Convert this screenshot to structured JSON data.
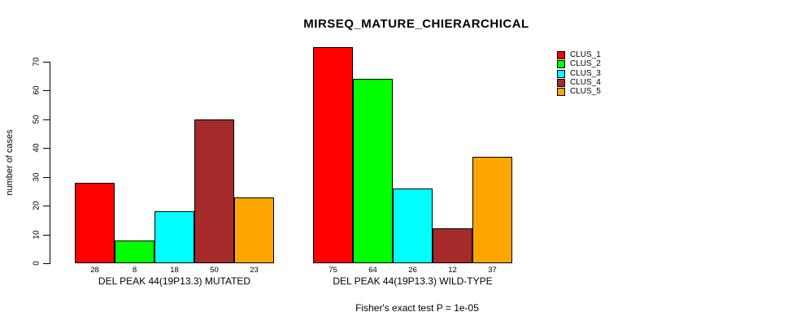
{
  "chart_data": {
    "type": "bar",
    "title": "MIRSEQ_MATURE_CHIERARCHICAL",
    "ylabel": "number of cases",
    "xlabel": "",
    "ylim": [
      0,
      70
    ],
    "yticks": [
      0,
      10,
      20,
      30,
      40,
      50,
      60,
      70
    ],
    "grid": false,
    "legend_position": "top-right",
    "categories": [
      "DEL PEAK 44(19P13.3) MUTATED",
      "DEL PEAK 44(19P13.3) WILD-TYPE"
    ],
    "series": [
      {
        "name": "CLUS_1",
        "color": "#FF0000",
        "values": [
          28,
          75
        ]
      },
      {
        "name": "CLUS_2",
        "color": "#00FF00",
        "values": [
          8,
          64
        ]
      },
      {
        "name": "CLUS_3",
        "color": "#00FFFF",
        "values": [
          18,
          26
        ]
      },
      {
        "name": "CLUS_4",
        "color": "#A52A2A",
        "values": [
          50,
          12
        ]
      },
      {
        "name": "CLUS_5",
        "color": "#FFA500",
        "values": [
          23,
          37
        ]
      }
    ],
    "bar_value_labels": {
      "DEL PEAK 44(19P13.3) MUTATED": [
        28,
        8,
        18,
        50,
        23
      ],
      "DEL PEAK 44(19P13.3) WILD-TYPE": [
        75,
        64,
        26,
        12,
        37
      ]
    },
    "annotation": "Fisher's exact test P = 1e-05"
  }
}
